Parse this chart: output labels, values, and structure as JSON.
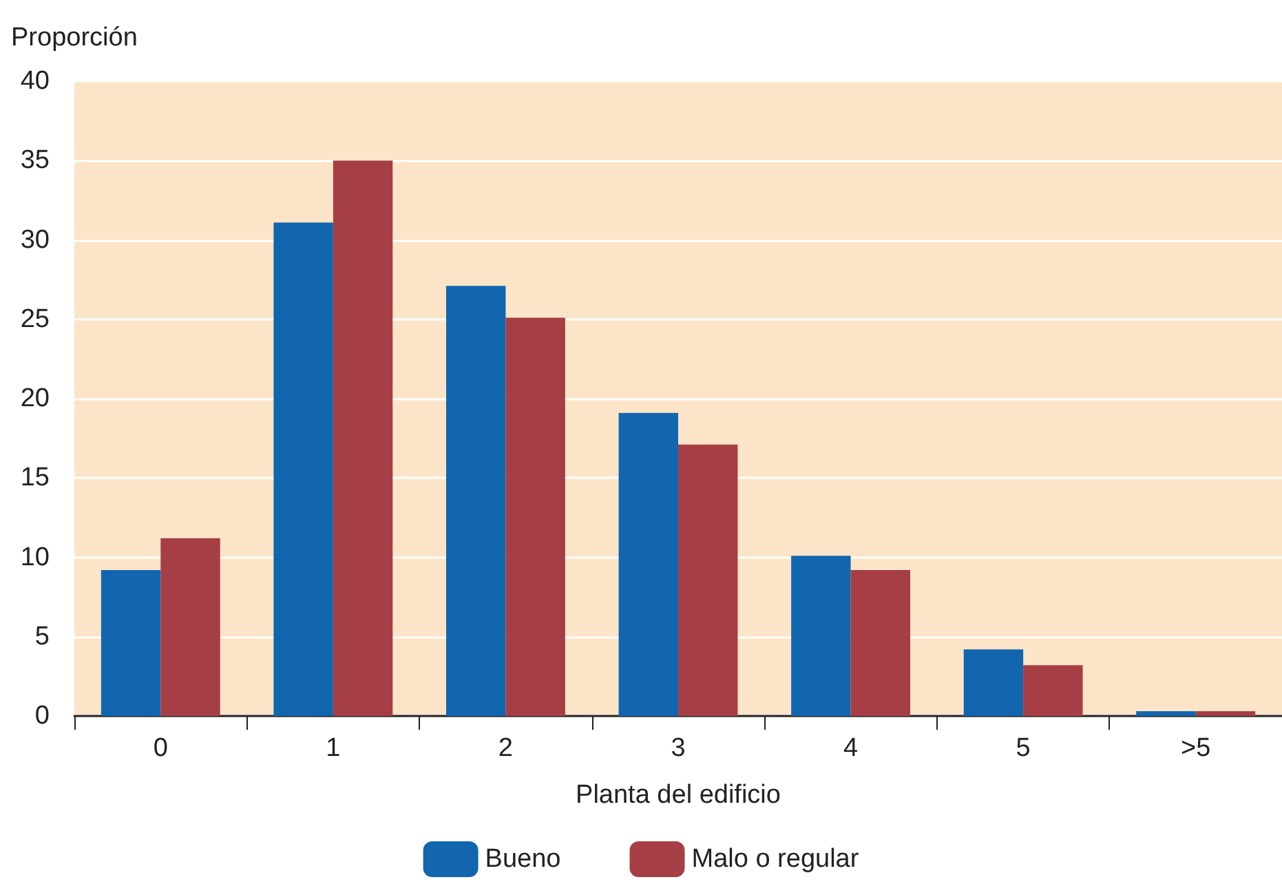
{
  "chart_data": {
    "type": "bar",
    "xlabel": "Planta del edificio",
    "ylabel": "Proporción",
    "categories": [
      "0",
      "1",
      "2",
      "3",
      "4",
      "5",
      ">5"
    ],
    "series": [
      {
        "name": "Bueno",
        "color": "#1266ae",
        "values": [
          9.2,
          31.1,
          27.1,
          19.1,
          10.1,
          4.2,
          0.3
        ]
      },
      {
        "name": "Malo o regular",
        "color": "#a63f45",
        "values": [
          11.2,
          35.0,
          25.1,
          17.1,
          9.2,
          3.2,
          0.3
        ]
      }
    ],
    "ylim": [
      0,
      40
    ],
    "yticks": [
      0,
      5,
      10,
      15,
      20,
      25,
      30,
      35,
      40
    ],
    "grid": "y",
    "legend": "bottom"
  }
}
